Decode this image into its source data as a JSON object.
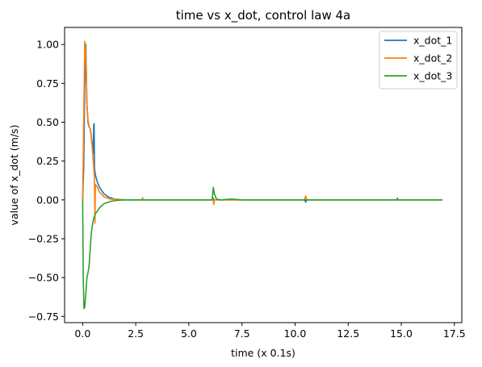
{
  "chart_data": {
    "type": "line",
    "title": "time vs x_dot, control law 4a",
    "xlabel": "time (x 0.1s)",
    "ylabel": "value of x_dot (m/s)",
    "xlim": [
      -0.85,
      17.85
    ],
    "ylim": [
      -0.79,
      1.11
    ],
    "x_ticks": [
      0.0,
      2.5,
      5.0,
      7.5,
      10.0,
      12.5,
      15.0,
      17.5
    ],
    "x_tick_labels": [
      "0.0",
      "2.5",
      "5.0",
      "7.5",
      "10.0",
      "12.5",
      "15.0",
      "17.5"
    ],
    "y_ticks": [
      -0.75,
      -0.5,
      -0.25,
      0.0,
      0.25,
      0.5,
      0.75,
      1.0
    ],
    "y_tick_labels": [
      "−0.75",
      "−0.50",
      "−0.25",
      "0.00",
      "0.25",
      "0.50",
      "0.75",
      "1.00"
    ],
    "grid": false,
    "legend_position": "top-right",
    "series": [
      {
        "name": "x_dot_1",
        "color": "#1f77b4",
        "points": [
          [
            0.0,
            0.0
          ],
          [
            0.05,
            0.2
          ],
          [
            0.1,
            0.75
          ],
          [
            0.15,
            1.0
          ],
          [
            0.2,
            0.62
          ],
          [
            0.25,
            0.5
          ],
          [
            0.3,
            0.47
          ],
          [
            0.35,
            0.46
          ],
          [
            0.4,
            0.42
          ],
          [
            0.45,
            0.36
          ],
          [
            0.5,
            0.3
          ],
          [
            0.52,
            0.48
          ],
          [
            0.54,
            0.49
          ],
          [
            0.56,
            0.2
          ],
          [
            0.6,
            0.16
          ],
          [
            0.7,
            0.11
          ],
          [
            0.8,
            0.08
          ],
          [
            1.0,
            0.04
          ],
          [
            1.2,
            0.02
          ],
          [
            1.5,
            0.005
          ],
          [
            2.0,
            0.0
          ],
          [
            3.0,
            0.0
          ],
          [
            6.1,
            0.0
          ],
          [
            6.15,
            0.01
          ],
          [
            6.2,
            0.0
          ],
          [
            8.0,
            0.0
          ],
          [
            10.45,
            0.0
          ],
          [
            10.5,
            -0.015
          ],
          [
            10.55,
            0.0
          ],
          [
            14.8,
            0.0
          ],
          [
            14.82,
            0.012
          ],
          [
            14.84,
            0.0
          ],
          [
            16.9,
            0.0
          ]
        ]
      },
      {
        "name": "x_dot_2",
        "color": "#ff7f0e",
        "points": [
          [
            0.0,
            0.0
          ],
          [
            0.05,
            0.5
          ],
          [
            0.1,
            1.02
          ],
          [
            0.15,
            0.95
          ],
          [
            0.2,
            0.62
          ],
          [
            0.25,
            0.52
          ],
          [
            0.3,
            0.47
          ],
          [
            0.35,
            0.46
          ],
          [
            0.4,
            0.41
          ],
          [
            0.45,
            0.34
          ],
          [
            0.5,
            0.25
          ],
          [
            0.55,
            0.16
          ],
          [
            0.58,
            -0.15
          ],
          [
            0.6,
            0.1
          ],
          [
            0.7,
            0.08
          ],
          [
            0.8,
            0.05
          ],
          [
            1.0,
            0.02
          ],
          [
            1.3,
            0.005
          ],
          [
            2.0,
            0.0
          ],
          [
            2.8,
            0.0
          ],
          [
            2.82,
            0.015
          ],
          [
            2.84,
            0.0
          ],
          [
            6.15,
            0.0
          ],
          [
            6.17,
            -0.03
          ],
          [
            6.2,
            0.0
          ],
          [
            10.45,
            0.0
          ],
          [
            10.5,
            0.025
          ],
          [
            10.55,
            0.0
          ],
          [
            16.9,
            0.0
          ]
        ]
      },
      {
        "name": "x_dot_3",
        "color": "#2ca02c",
        "points": [
          [
            0.0,
            0.0
          ],
          [
            0.03,
            -0.5
          ],
          [
            0.06,
            -0.7
          ],
          [
            0.1,
            -0.69
          ],
          [
            0.15,
            -0.6
          ],
          [
            0.2,
            -0.5
          ],
          [
            0.25,
            -0.47
          ],
          [
            0.3,
            -0.43
          ],
          [
            0.35,
            -0.33
          ],
          [
            0.4,
            -0.22
          ],
          [
            0.5,
            -0.13
          ],
          [
            0.6,
            -0.09
          ],
          [
            0.8,
            -0.05
          ],
          [
            1.0,
            -0.025
          ],
          [
            1.3,
            -0.01
          ],
          [
            1.6,
            -0.003
          ],
          [
            2.0,
            0.0
          ],
          [
            6.1,
            0.0
          ],
          [
            6.15,
            0.08
          ],
          [
            6.2,
            0.04
          ],
          [
            6.3,
            0.005
          ],
          [
            6.5,
            0.0
          ],
          [
            7.0,
            0.005
          ],
          [
            7.5,
            0.0
          ],
          [
            16.9,
            0.0
          ]
        ]
      }
    ]
  }
}
